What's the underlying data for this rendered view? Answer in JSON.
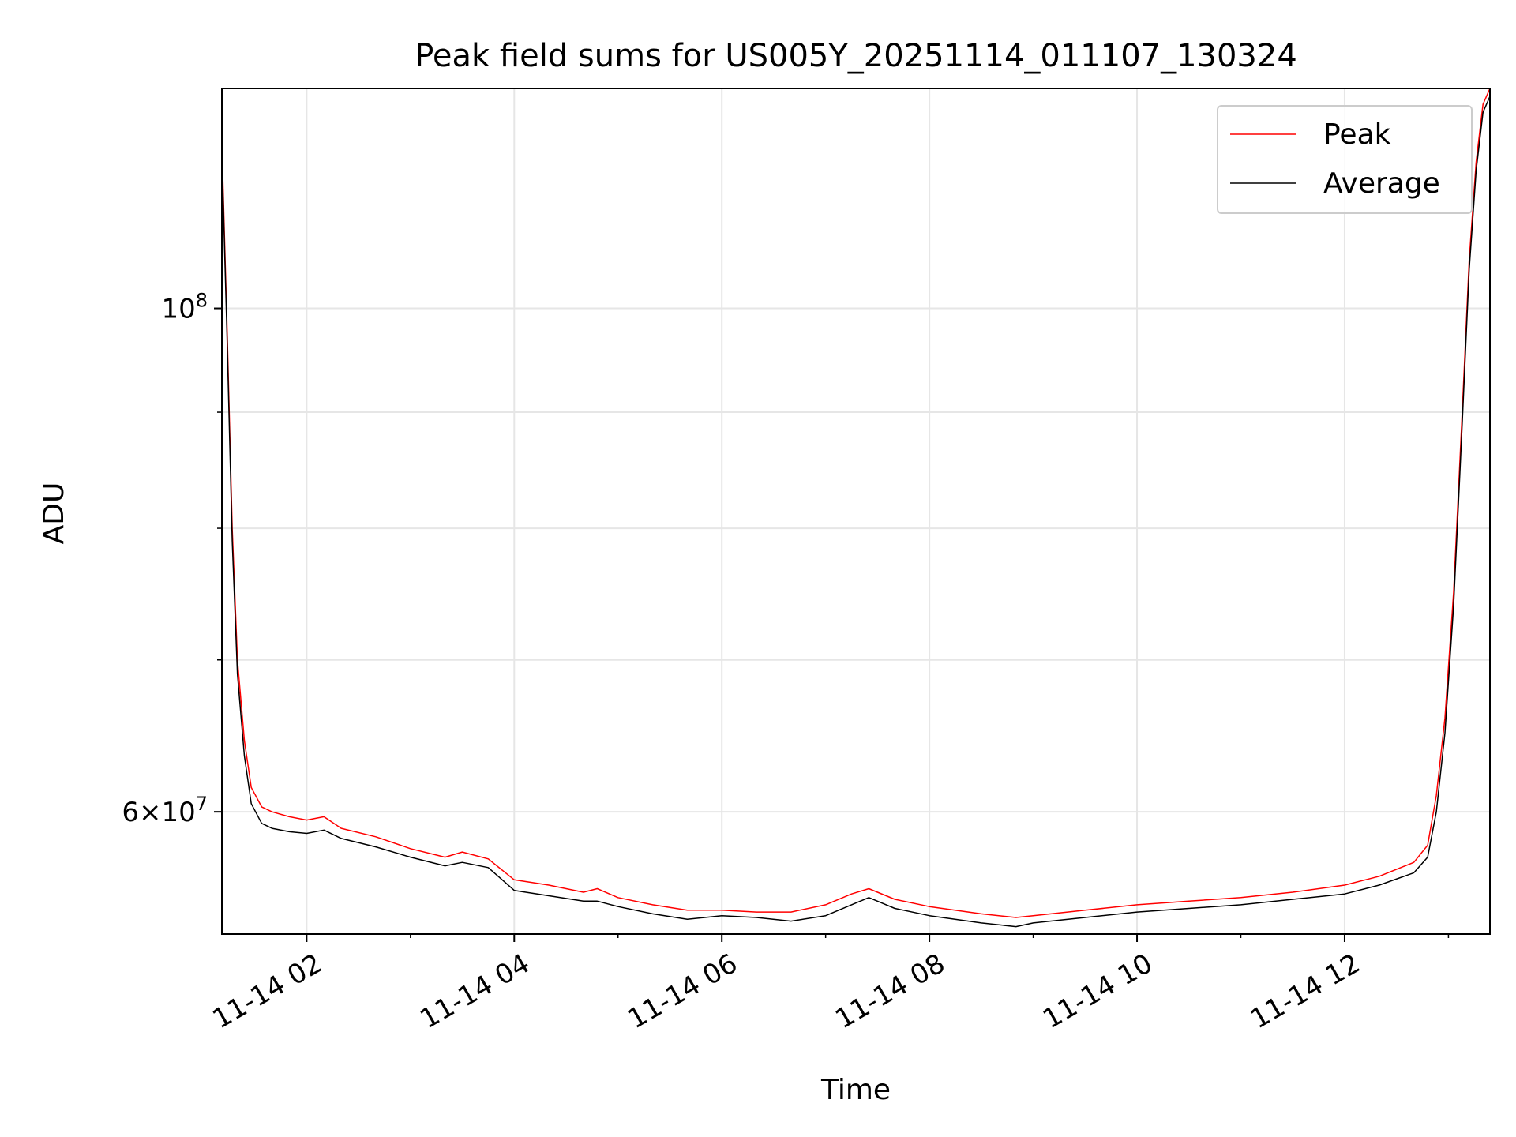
{
  "chart_data": {
    "type": "line",
    "title": "Peak field sums for US005Y_20251114_011107_130324",
    "xlabel": "Time",
    "ylabel": "ADU",
    "yscale": "log",
    "ylim": [
      53000000,
      125000000
    ],
    "xlim": [
      "2025-11-14 01:11",
      "2025-11-14 13:24"
    ],
    "grid": true,
    "legend_position": "top-right",
    "x_ticks": [
      {
        "t": "2025-11-14 02:00",
        "label": "11-14 02"
      },
      {
        "t": "2025-11-14 04:00",
        "label": "11-14 04"
      },
      {
        "t": "2025-11-14 06:00",
        "label": "11-14 06"
      },
      {
        "t": "2025-11-14 08:00",
        "label": "11-14 08"
      },
      {
        "t": "2025-11-14 10:00",
        "label": "11-14 10"
      },
      {
        "t": "2025-11-14 12:00",
        "label": "11-14 12"
      }
    ],
    "y_ticks": [
      {
        "value": 100000000,
        "base": "10",
        "exp": "8",
        "mantissa": ""
      },
      {
        "value": 60000000,
        "base": "10",
        "exp": "7",
        "mantissa": "6"
      }
    ],
    "y_minor_ticks": [
      70000000,
      80000000,
      90000000
    ],
    "x_minor_ticks": [
      "2025-11-14 03:00",
      "2025-11-14 05:00",
      "2025-11-14 07:00",
      "2025-11-14 09:00",
      "2025-11-14 11:00",
      "2025-11-14 13:00"
    ],
    "series": [
      {
        "name": "Peak",
        "color": "#ff0000",
        "x": [
          "2025-11-14 01:11",
          "2025-11-14 01:14",
          "2025-11-14 01:17",
          "2025-11-14 01:20",
          "2025-11-14 01:24",
          "2025-11-14 01:28",
          "2025-11-14 01:34",
          "2025-11-14 01:40",
          "2025-11-14 01:50",
          "2025-11-14 02:00",
          "2025-11-14 02:10",
          "2025-11-14 02:20",
          "2025-11-14 02:40",
          "2025-11-14 03:00",
          "2025-11-14 03:20",
          "2025-11-14 03:30",
          "2025-11-14 03:45",
          "2025-11-14 04:00",
          "2025-11-14 04:20",
          "2025-11-14 04:40",
          "2025-11-14 04:48",
          "2025-11-14 05:00",
          "2025-11-14 05:20",
          "2025-11-14 05:40",
          "2025-11-14 06:00",
          "2025-11-14 06:20",
          "2025-11-14 06:40",
          "2025-11-14 07:00",
          "2025-11-14 07:15",
          "2025-11-14 07:25",
          "2025-11-14 07:40",
          "2025-11-14 08:00",
          "2025-11-14 08:30",
          "2025-11-14 08:50",
          "2025-11-14 09:00",
          "2025-11-14 09:30",
          "2025-11-14 10:00",
          "2025-11-14 10:30",
          "2025-11-14 11:00",
          "2025-11-14 11:30",
          "2025-11-14 12:00",
          "2025-11-14 12:20",
          "2025-11-14 12:40",
          "2025-11-14 12:48",
          "2025-11-14 12:53",
          "2025-11-14 12:58",
          "2025-11-14 13:03",
          "2025-11-14 13:08",
          "2025-11-14 13:12",
          "2025-11-14 13:16",
          "2025-11-14 13:20",
          "2025-11-14 13:24"
        ],
        "y": [
          118000000,
          98000000,
          80000000,
          70000000,
          64500000,
          61500000,
          60300000,
          60000000,
          59700000,
          59500000,
          59700000,
          59000000,
          58500000,
          57800000,
          57300000,
          57600000,
          57200000,
          56000000,
          55700000,
          55300000,
          55500000,
          55000000,
          54600000,
          54300000,
          54300000,
          54200000,
          54200000,
          54600000,
          55200000,
          55500000,
          54900000,
          54500000,
          54100000,
          53900000,
          54000000,
          54300000,
          54600000,
          54800000,
          55000000,
          55300000,
          55700000,
          56200000,
          57000000,
          58000000,
          61000000,
          66000000,
          75000000,
          90000000,
          105000000,
          116000000,
          123000000,
          125000000
        ]
      },
      {
        "name": "Average",
        "color": "#000000",
        "x": [
          "2025-11-14 01:11",
          "2025-11-14 01:14",
          "2025-11-14 01:17",
          "2025-11-14 01:20",
          "2025-11-14 01:24",
          "2025-11-14 01:28",
          "2025-11-14 01:34",
          "2025-11-14 01:40",
          "2025-11-14 01:50",
          "2025-11-14 02:00",
          "2025-11-14 02:10",
          "2025-11-14 02:20",
          "2025-11-14 02:40",
          "2025-11-14 03:00",
          "2025-11-14 03:20",
          "2025-11-14 03:30",
          "2025-11-14 03:45",
          "2025-11-14 04:00",
          "2025-11-14 04:20",
          "2025-11-14 04:40",
          "2025-11-14 04:48",
          "2025-11-14 05:00",
          "2025-11-14 05:20",
          "2025-11-14 05:40",
          "2025-11-14 06:00",
          "2025-11-14 06:20",
          "2025-11-14 06:40",
          "2025-11-14 07:00",
          "2025-11-14 07:15",
          "2025-11-14 07:25",
          "2025-11-14 07:40",
          "2025-11-14 08:00",
          "2025-11-14 08:30",
          "2025-11-14 08:50",
          "2025-11-14 09:00",
          "2025-11-14 09:30",
          "2025-11-14 10:00",
          "2025-11-14 10:30",
          "2025-11-14 11:00",
          "2025-11-14 11:30",
          "2025-11-14 12:00",
          "2025-11-14 12:20",
          "2025-11-14 12:40",
          "2025-11-14 12:48",
          "2025-11-14 12:53",
          "2025-11-14 12:58",
          "2025-11-14 13:03",
          "2025-11-14 13:08",
          "2025-11-14 13:12",
          "2025-11-14 13:16",
          "2025-11-14 13:20",
          "2025-11-14 13:24"
        ],
        "y": [
          117000000,
          97000000,
          79000000,
          69000000,
          63500000,
          60500000,
          59300000,
          59000000,
          58800000,
          58700000,
          58900000,
          58400000,
          57900000,
          57300000,
          56800000,
          57000000,
          56700000,
          55400000,
          55100000,
          54800000,
          54800000,
          54500000,
          54100000,
          53800000,
          54000000,
          53900000,
          53700000,
          54000000,
          54600000,
          55000000,
          54400000,
          54000000,
          53600000,
          53400000,
          53600000,
          53900000,
          54200000,
          54400000,
          54600000,
          54900000,
          55200000,
          55700000,
          56400000,
          57300000,
          60000000,
          65000000,
          74000000,
          89000000,
          104000000,
          115000000,
          122000000,
          124000000
        ]
      }
    ]
  }
}
